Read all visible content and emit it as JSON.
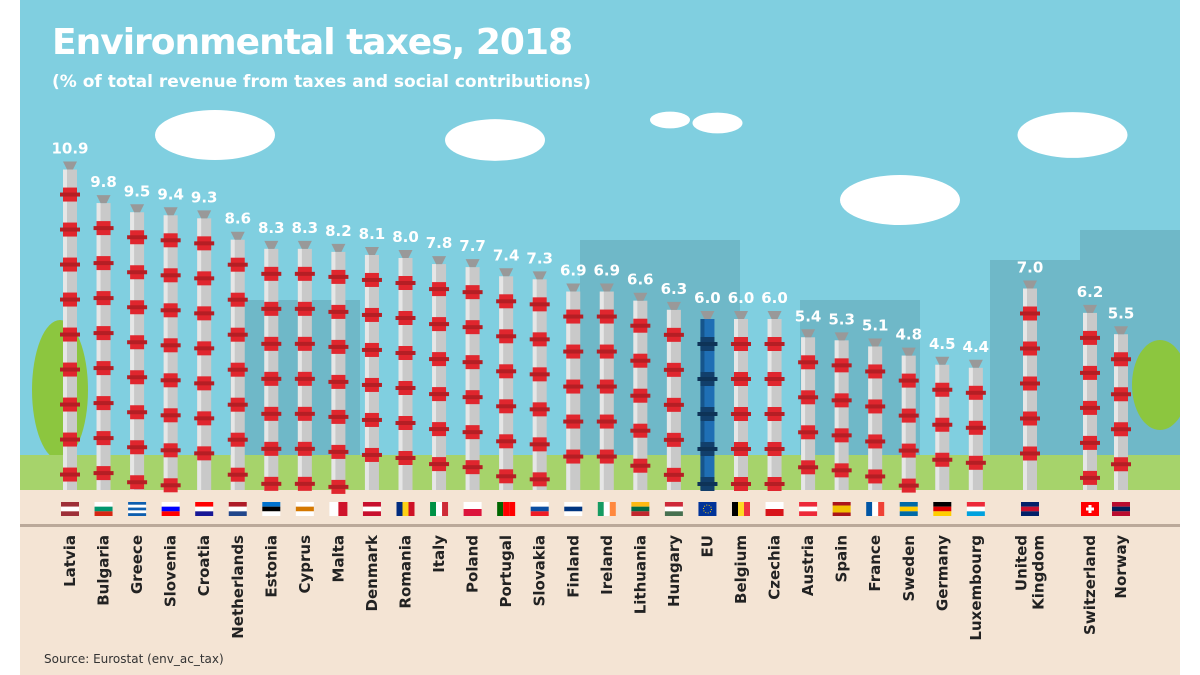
{
  "title": "Environmental taxes, 2018",
  "subtitle": "(% of total revenue from taxes and social contributions)",
  "source": "Source: Eurostat (env_ac_tax)",
  "colors": {
    "sky": "#80cfe0",
    "pole": "#c9c9c9",
    "stripe": "#e0262e",
    "eu_pole": "#1f6fb5",
    "ground": "#f4e4d4"
  },
  "chart_data": {
    "type": "bar",
    "title": "Environmental taxes, 2018",
    "subtitle": "(% of total revenue from taxes and social contributions)",
    "xlabel": "",
    "ylabel": "",
    "ylim": [
      0,
      11
    ],
    "grid": false,
    "categories": [
      "Latvia",
      "Bulgaria",
      "Greece",
      "Slovenia",
      "Croatia",
      "Netherlands",
      "Estonia",
      "Cyprus",
      "Malta",
      "Denmark",
      "Romania",
      "Italy",
      "Poland",
      "Portugal",
      "Slovakia",
      "Finland",
      "Ireland",
      "Lithuania",
      "Hungary",
      "EU",
      "Belgium",
      "Czechia",
      "Austria",
      "Spain",
      "France",
      "Sweden",
      "Germany",
      "Luxembourg",
      "United Kingdom",
      "Switzerland",
      "Norway"
    ],
    "values": [
      10.9,
      9.8,
      9.5,
      9.4,
      9.3,
      8.6,
      8.3,
      8.3,
      8.2,
      8.1,
      8.0,
      7.8,
      7.7,
      7.4,
      7.3,
      6.9,
      6.9,
      6.6,
      6.3,
      6.0,
      6.0,
      6.0,
      5.4,
      5.3,
      5.1,
      4.8,
      4.5,
      4.4,
      7.0,
      6.2,
      5.5
    ],
    "value_labels": [
      "10.9",
      "9.8",
      "9.5",
      "9.4",
      "9.3",
      "8.6",
      "8.3",
      "8.3",
      "8.2",
      "8.1",
      "8.0",
      "7.8",
      "7.7",
      "7.4",
      "7.3",
      "6.9",
      "6.9",
      "6.6",
      "6.3",
      "6.0",
      "6.0",
      "6.0",
      "5.4",
      "5.3",
      "5.1",
      "4.8",
      "4.5",
      "4.4",
      "7.0",
      "6.2",
      "5.5"
    ],
    "highlight": "EU",
    "flags": [
      {
        "d": "h",
        "c": [
          "#9e3039",
          "#fff",
          "#9e3039"
        ]
      },
      {
        "d": "h",
        "c": [
          "#fff",
          "#00966e",
          "#d62612"
        ]
      },
      {
        "d": "h",
        "c": [
          "#0d5eaf",
          "#fff",
          "#0d5eaf",
          "#fff",
          "#0d5eaf"
        ]
      },
      {
        "d": "h",
        "c": [
          "#fff",
          "#0000ff",
          "#ff0000"
        ]
      },
      {
        "d": "h",
        "c": [
          "#ff0000",
          "#fff",
          "#171796"
        ]
      },
      {
        "d": "h",
        "c": [
          "#ae1c28",
          "#fff",
          "#21468b"
        ]
      },
      {
        "d": "h",
        "c": [
          "#0072ce",
          "#000",
          "#fff"
        ]
      },
      {
        "d": "h",
        "c": [
          "#fff",
          "#d57800",
          "#fff"
        ]
      },
      {
        "d": "v",
        "c": [
          "#fff",
          "#cf142b"
        ]
      },
      {
        "d": "h",
        "c": [
          "#c8102e",
          "#fff",
          "#c8102e"
        ]
      },
      {
        "d": "v",
        "c": [
          "#002b7f",
          "#fcd116",
          "#ce1126"
        ]
      },
      {
        "d": "v",
        "c": [
          "#009246",
          "#fff",
          "#ce2b37"
        ]
      },
      {
        "d": "h",
        "c": [
          "#fff",
          "#dc143c"
        ]
      },
      {
        "d": "v",
        "c": [
          "#006600",
          "#ff0000",
          "#ff0000"
        ]
      },
      {
        "d": "h",
        "c": [
          "#fff",
          "#0b4ea2",
          "#ee1c25"
        ]
      },
      {
        "d": "h",
        "c": [
          "#fff",
          "#003580",
          "#fff"
        ]
      },
      {
        "d": "v",
        "c": [
          "#169b62",
          "#fff",
          "#ff883e"
        ]
      },
      {
        "d": "h",
        "c": [
          "#fdb913",
          "#006a44",
          "#c1272d"
        ]
      },
      {
        "d": "h",
        "c": [
          "#ce2939",
          "#fff",
          "#477050"
        ]
      },
      {
        "d": "h",
        "c": [
          "#003399",
          "#003399"
        ]
      },
      {
        "d": "v",
        "c": [
          "#000",
          "#fdda24",
          "#ef3340"
        ]
      },
      {
        "d": "h",
        "c": [
          "#fff",
          "#d7141a"
        ]
      },
      {
        "d": "h",
        "c": [
          "#ed2939",
          "#fff",
          "#ed2939"
        ]
      },
      {
        "d": "h",
        "c": [
          "#aa151b",
          "#f1bf00",
          "#f1bf00",
          "#aa151b"
        ]
      },
      {
        "d": "v",
        "c": [
          "#0055a4",
          "#fff",
          "#ef4135"
        ]
      },
      {
        "d": "h",
        "c": [
          "#006aa7",
          "#fecc00",
          "#006aa7"
        ]
      },
      {
        "d": "h",
        "c": [
          "#000",
          "#dd0000",
          "#ffce00"
        ]
      },
      {
        "d": "h",
        "c": [
          "#ed2939",
          "#fff",
          "#00a1de"
        ]
      },
      {
        "d": "h",
        "c": [
          "#012169",
          "#c8102e",
          "#012169"
        ]
      },
      {
        "d": "h",
        "c": [
          "#ff0000",
          "#ff0000"
        ]
      },
      {
        "d": "h",
        "c": [
          "#ba0c2f",
          "#00205b",
          "#ba0c2f"
        ]
      }
    ]
  }
}
